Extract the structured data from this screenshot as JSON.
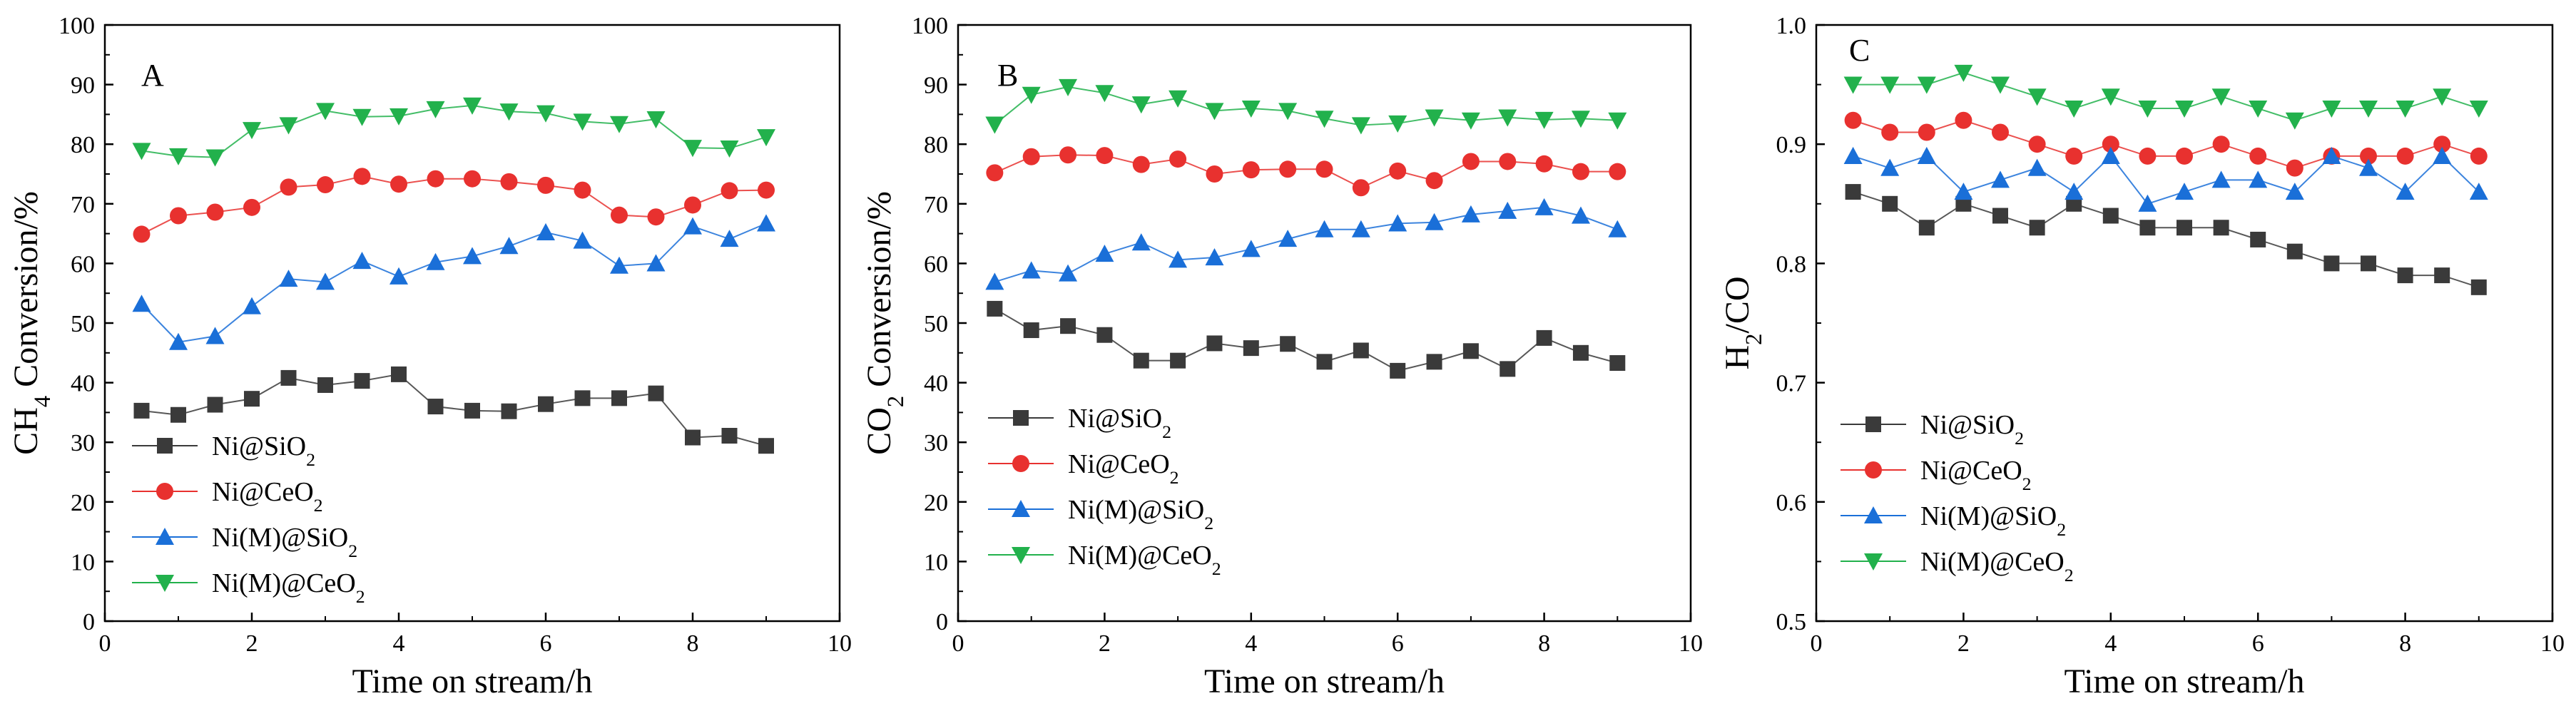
{
  "chart_data": [
    {
      "panel": "A",
      "type": "line",
      "xlabel": "Time on stream/h",
      "ylabel": {
        "main": "CH",
        "sub": "4",
        "rest": " Conversion/%"
      },
      "xlim": [
        0,
        10
      ],
      "ylim": [
        0,
        100
      ],
      "xticks": [
        "0",
        "2",
        "4",
        "6",
        "8",
        "10"
      ],
      "yticks": [
        "0",
        "10",
        "20",
        "30",
        "40",
        "50",
        "60",
        "70",
        "80",
        "90",
        "100"
      ],
      "x": [
        0.5,
        1,
        1.5,
        2,
        2.5,
        3,
        3.5,
        4,
        4.5,
        5,
        5.5,
        6,
        6.5,
        7,
        7.5,
        8,
        8.5,
        9
      ],
      "series": [
        {
          "name": {
            "main": "Ni@SiO",
            "sub": "2"
          },
          "color": "#3a3a3a",
          "marker": "square",
          "values": [
            35.3,
            34.6,
            36.3,
            37.3,
            40.8,
            39.6,
            40.3,
            41.4,
            36,
            35.3,
            35.2,
            36.4,
            37.4,
            37.4,
            38.2,
            30.8,
            31.1,
            29.4
          ]
        },
        {
          "name": {
            "main": "Ni@CeO",
            "sub": "2"
          },
          "color": "#e8312f",
          "marker": "circle",
          "values": [
            64.9,
            68,
            68.6,
            69.4,
            72.8,
            73.2,
            74.6,
            73.3,
            74.2,
            74.2,
            73.7,
            73.1,
            72.3,
            68.1,
            67.8,
            69.8,
            72.2,
            72.3
          ]
        },
        {
          "name": {
            "main": "Ni(M)@SiO",
            "sub": "2"
          },
          "color": "#1a6fd8",
          "marker": "triangle-up",
          "values": [
            53.2,
            46.8,
            47.8,
            52.8,
            57.4,
            56.9,
            60.4,
            57.8,
            60.2,
            61.2,
            62.9,
            65.2,
            63.8,
            59.6,
            60,
            66.2,
            64.1,
            66.7
          ]
        },
        {
          "name": {
            "main": "Ni(M)@CeO",
            "sub": "2"
          },
          "color": "#22b14c",
          "marker": "triangle-down",
          "values": [
            78.9,
            78,
            77.8,
            82.4,
            83.2,
            85.6,
            84.6,
            84.7,
            85.9,
            86.5,
            85.5,
            85.2,
            83.8,
            83.4,
            84.2,
            79.4,
            79.3,
            81.2
          ]
        }
      ]
    },
    {
      "panel": "B",
      "type": "line",
      "xlabel": "Time on stream/h",
      "ylabel": {
        "main": "CO",
        "sub": "2",
        "rest": " Conversion/%"
      },
      "xlim": [
        0,
        10
      ],
      "ylim": [
        0,
        100
      ],
      "xticks": [
        "0",
        "2",
        "4",
        "6",
        "8",
        "10"
      ],
      "yticks": [
        "0",
        "10",
        "20",
        "30",
        "40",
        "50",
        "60",
        "70",
        "80",
        "90",
        "100"
      ],
      "x": [
        0.5,
        1,
        1.5,
        2,
        2.5,
        3,
        3.5,
        4,
        4.5,
        5,
        5.5,
        6,
        6.5,
        7,
        7.5,
        8,
        8.5,
        9
      ],
      "series": [
        {
          "name": {
            "main": "Ni@SiO",
            "sub": "2"
          },
          "color": "#3a3a3a",
          "marker": "square",
          "values": [
            52.4,
            48.8,
            49.5,
            48,
            43.7,
            43.7,
            46.6,
            45.8,
            46.5,
            43.5,
            45.4,
            42,
            43.5,
            45.3,
            42.3,
            47.5,
            45,
            43.3
          ]
        },
        {
          "name": {
            "main": "Ni@CeO",
            "sub": "2"
          },
          "color": "#e8312f",
          "marker": "circle",
          "values": [
            75.2,
            77.9,
            78.2,
            78.1,
            76.6,
            77.5,
            75,
            75.7,
            75.8,
            75.8,
            72.7,
            75.5,
            73.9,
            77.1,
            77.1,
            76.7,
            75.4,
            75.4
          ]
        },
        {
          "name": {
            "main": "Ni(M)@SiO",
            "sub": "2"
          },
          "color": "#1a6fd8",
          "marker": "triangle-up",
          "values": [
            56.9,
            58.8,
            58.3,
            61.6,
            63.5,
            60.6,
            61,
            62.4,
            64.1,
            65.7,
            65.7,
            66.7,
            66.9,
            68.2,
            68.8,
            69.4,
            68,
            65.7
          ]
        },
        {
          "name": {
            "main": "Ni(M)@CeO",
            "sub": "2"
          },
          "color": "#22b14c",
          "marker": "triangle-down",
          "values": [
            83.3,
            88.3,
            89.6,
            88.6,
            86.7,
            87.7,
            85.6,
            86,
            85.6,
            84.3,
            83.2,
            83.5,
            84.5,
            84,
            84.5,
            84.1,
            84.3,
            84
          ]
        }
      ]
    },
    {
      "panel": "C",
      "type": "line",
      "xlabel": "Time on stream/h",
      "ylabel": {
        "main": "H",
        "sub": "2",
        "rest": "/CO"
      },
      "xlim": [
        0,
        10
      ],
      "ylim": [
        0.5,
        1.0
      ],
      "xticks": [
        "0",
        "2",
        "4",
        "6",
        "8",
        "10"
      ],
      "yticks": [
        "0.5",
        "0.6",
        "0.7",
        "0.8",
        "0.9",
        "1.0"
      ],
      "x": [
        0.5,
        1,
        1.5,
        2,
        2.5,
        3,
        3.5,
        4,
        4.5,
        5,
        5.5,
        6,
        6.5,
        7,
        7.5,
        8,
        8.5,
        9
      ],
      "series": [
        {
          "name": {
            "main": "Ni@SiO",
            "sub": "2"
          },
          "color": "#3a3a3a",
          "marker": "square",
          "values": [
            0.86,
            0.85,
            0.83,
            0.85,
            0.84,
            0.83,
            0.85,
            0.84,
            0.83,
            0.83,
            0.83,
            0.82,
            0.81,
            0.8,
            0.8,
            0.79,
            0.79,
            0.78
          ]
        },
        {
          "name": {
            "main": "Ni@CeO",
            "sub": "2"
          },
          "color": "#e8312f",
          "marker": "circle",
          "values": [
            0.92,
            0.91,
            0.91,
            0.92,
            0.91,
            0.9,
            0.89,
            0.9,
            0.89,
            0.89,
            0.9,
            0.89,
            0.88,
            0.89,
            0.89,
            0.89,
            0.9,
            0.89
          ]
        },
        {
          "name": {
            "main": "Ni(M)@SiO",
            "sub": "2"
          },
          "color": "#1a6fd8",
          "marker": "triangle-up",
          "values": [
            0.89,
            0.88,
            0.89,
            0.86,
            0.87,
            0.88,
            0.86,
            0.89,
            0.85,
            0.86,
            0.87,
            0.87,
            0.86,
            0.89,
            0.88,
            0.86,
            0.89,
            0.86
          ]
        },
        {
          "name": {
            "main": "Ni(M)@CeO",
            "sub": "2"
          },
          "color": "#22b14c",
          "marker": "triangle-down",
          "values": [
            0.95,
            0.95,
            0.95,
            0.96,
            0.95,
            0.94,
            0.93,
            0.94,
            0.93,
            0.93,
            0.94,
            0.93,
            0.92,
            0.93,
            0.93,
            0.93,
            0.94,
            0.93
          ]
        }
      ]
    }
  ]
}
